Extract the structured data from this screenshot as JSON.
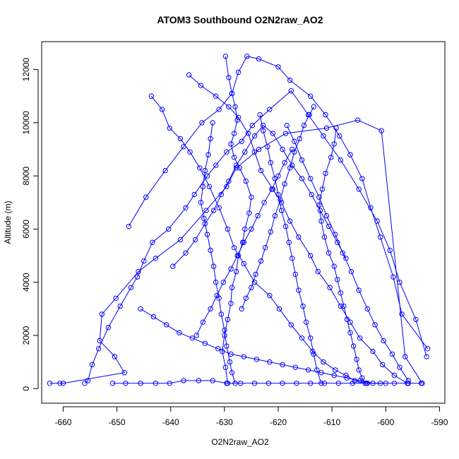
{
  "chart_data": {
    "type": "line",
    "title": "ATOM3 Southbound O2N2raw_AO2",
    "xlabel": "O2N2raw_AO2",
    "ylabel": "Altitude (m)",
    "xlim": [
      -664,
      -589
    ],
    "ylim": [
      -550,
      13050
    ],
    "xticks": [
      -660,
      -650,
      -640,
      -630,
      -620,
      -610,
      -600,
      -590
    ],
    "yticks": [
      0,
      2000,
      4000,
      6000,
      8000,
      10000,
      12000
    ],
    "grid": false,
    "legend": "none",
    "marker": "open-circle",
    "color": "#0000ff",
    "series": [
      {
        "x": [
          -662.5,
          -660.6,
          -660.0,
          -648.6,
          -650.4,
          -653.2,
          -652.8,
          -650.2,
          -646.0,
          -642.8,
          -638.2,
          -633.4,
          -629.6,
          -627.8,
          -623.6,
          -618.6,
          -611.0,
          -605.2,
          -600.8,
          -596.4,
          -593.2
        ],
        "y": [
          200,
          200,
          200,
          600,
          1200,
          1800,
          2800,
          3400,
          4400,
          4900,
          5600,
          6700,
          7600,
          8300,
          9000,
          9600,
          9800,
          10100,
          9700,
          1200,
          200
        ]
      },
      {
        "x": [
          -656.0,
          -655.4,
          -654.6,
          -653.4,
          -651.6,
          -649.4,
          -647.4,
          -646.2,
          -645.0,
          -643.4,
          -640.4,
          -637.2,
          -635.6,
          -633.2,
          -631.6,
          -629.6,
          -626.8,
          -624.8,
          -621.6,
          -617.6,
          -614.4,
          -611.6,
          -608.4,
          -605.0,
          -601.6,
          -599.2,
          -597.4,
          -594.4,
          -592.4
        ],
        "y": [
          200,
          300,
          900,
          1500,
          2300,
          3100,
          3800,
          4200,
          4800,
          5500,
          6000,
          6800,
          7300,
          8000,
          8400,
          8900,
          9300,
          9900,
          10500,
          11200,
          10300,
          9500,
          8600,
          7500,
          6300,
          5200,
          4000,
          2600,
          1200
        ]
      },
      {
        "x": [
          -647.8,
          -644.6,
          -641.0,
          -637.6,
          -634.2,
          -631.0,
          -628.6,
          -627.4,
          -625.8,
          -623.6,
          -620.0,
          -617.8,
          -614.0,
          -611.2,
          -608.6,
          -606.6,
          -604.4,
          -602.8,
          -601.0,
          -598.6,
          -597.0,
          -592.2
        ],
        "y": [
          6100,
          7200,
          8200,
          9100,
          10000,
          10500,
          11100,
          11900,
          12500,
          12400,
          12100,
          11600,
          11000,
          10300,
          9500,
          8800,
          7900,
          6800,
          5700,
          4200,
          2800,
          1500
        ]
      },
      {
        "x": [
          -643.6,
          -641.6,
          -640.2,
          -638.2,
          -636.4,
          -634.6,
          -632.8,
          -631.0,
          -629.4,
          -628.2,
          -626.4,
          -624.4,
          -621.6,
          -619.8,
          -617.6,
          -615.6,
          -613.6,
          -611.6,
          -609.4,
          -607.4,
          -605.8,
          -603.4
        ],
        "y": [
          11000,
          10500,
          9800,
          9400,
          8900,
          8300,
          7600,
          6800,
          6000,
          5300,
          4700,
          4000,
          3500,
          3000,
          2400,
          1900,
          1400,
          1000,
          700,
          500,
          300,
          200
        ]
      },
      {
        "x": [
          -636.6,
          -634.4,
          -631.6,
          -629.2,
          -627.4,
          -625.6,
          -624.4,
          -623.2,
          -621.0,
          -619.4,
          -617.8,
          -616.2,
          -614.0,
          -612.6,
          -610.4,
          -608.4,
          -606.6,
          -604.8,
          -602.4,
          -600.6,
          -598.4,
          -596.0
        ],
        "y": [
          11800,
          11400,
          11000,
          10600,
          10200,
          9600,
          8900,
          8200,
          7500,
          7000,
          6300,
          5700,
          5000,
          4400,
          3800,
          3100,
          2500,
          1900,
          1400,
          900,
          500,
          200
        ]
      },
      {
        "x": [
          -629.4,
          -629.8,
          -630.4,
          -630.0,
          -629.4,
          -628.8,
          -628.6,
          -627.8,
          -627.4,
          -626.6,
          -626.2,
          -625.4,
          -625.0,
          -626.0,
          -627.2,
          -628.2,
          -628.8,
          -628.2,
          -627.6,
          -628.0,
          -628.6,
          -629.2,
          -629.8
        ],
        "y": [
          200,
          800,
          1400,
          2000,
          2600,
          3200,
          3800,
          4400,
          5000,
          5500,
          6000,
          6600,
          7200,
          7800,
          8300,
          8700,
          9200,
          9600,
          10100,
          10600,
          11100,
          11700,
          12500
        ]
      },
      {
        "x": [
          -609.2,
          -609.6,
          -610.2,
          -611.2,
          -611.8,
          -612.4,
          -612.0,
          -611.4,
          -610.6,
          -609.6,
          -609.0,
          -608.4,
          -607.8,
          -607.2,
          -606.6,
          -606.0,
          -605.4,
          -605.0,
          -604.4,
          -603.8
        ],
        "y": [
          9800,
          9200,
          8700,
          8100,
          7500,
          6900,
          6300,
          5700,
          5100,
          4600,
          4100,
          3600,
          3100,
          2600,
          2100,
          1600,
          1100,
          700,
          400,
          200
        ]
      },
      {
        "x": [
          -632.2,
          -632.6,
          -633.0,
          -633.6,
          -634.0,
          -634.4,
          -633.8,
          -633.2,
          -632.6,
          -632.0,
          -631.6,
          -631.0,
          -630.6,
          -630.0,
          -629.6,
          -629.0,
          -628.6,
          -628.0
        ],
        "y": [
          10000,
          9400,
          8800,
          8200,
          7600,
          7000,
          6400,
          5800,
          5200,
          4600,
          4000,
          3400,
          2800,
          2200,
          1600,
          1000,
          600,
          200
        ]
      },
      {
        "x": [
          -623.4,
          -622.8,
          -622.0,
          -621.4,
          -620.6,
          -620.0,
          -619.4,
          -618.6,
          -618.0,
          -617.4,
          -616.8,
          -616.2,
          -615.4,
          -614.8,
          -614.0,
          -613.4,
          -612.8,
          -612.0
        ],
        "y": [
          10300,
          9700,
          9100,
          8500,
          7900,
          7300,
          6700,
          6100,
          5500,
          4900,
          4300,
          3700,
          3100,
          2500,
          1900,
          1300,
          700,
          200
        ]
      },
      {
        "x": [
          -650.8,
          -648.4,
          -645.6,
          -642.8,
          -640.2,
          -637.6,
          -634.8,
          -632.2,
          -629.6,
          -627.0,
          -624.4,
          -621.8,
          -619.2,
          -616.6,
          -614.0,
          -611.4,
          -608.8,
          -606.2,
          -603.6,
          -601.0,
          -598.4,
          -595.8,
          -593.4
        ],
        "y": [
          200,
          200,
          200,
          200,
          200,
          300,
          300,
          300,
          200,
          200,
          200,
          200,
          200,
          200,
          200,
          200,
          200,
          200,
          200,
          200,
          200,
          200,
          200
        ]
      },
      {
        "x": [
          -639.6,
          -637.2,
          -635.4,
          -633.6,
          -632.0,
          -630.6,
          -629.2,
          -627.8,
          -626.2,
          -624.4,
          -622.8,
          -621.0,
          -619.2,
          -617.4,
          -615.6,
          -613.8,
          -612.2,
          -610.6,
          -609.0,
          -607.4
        ],
        "y": [
          4600,
          5100,
          5600,
          6200,
          6700,
          7300,
          7800,
          8400,
          8900,
          9500,
          9900,
          9600,
          9000,
          8400,
          7900,
          7300,
          6700,
          6100,
          5500,
          4900
        ]
      },
      {
        "x": [
          -645.6,
          -643.2,
          -640.8,
          -638.4,
          -636.0,
          -633.6,
          -631.2,
          -628.8,
          -626.4,
          -624.0,
          -621.6,
          -619.2,
          -616.8,
          -614.4,
          -612.0,
          -609.6,
          -607.2,
          -604.8,
          -602.4,
          -600.0
        ],
        "y": [
          3000,
          2700,
          2400,
          2100,
          1900,
          1700,
          1500,
          1300,
          1200,
          1100,
          1000,
          900,
          800,
          700,
          600,
          500,
          400,
          300,
          200,
          200
        ]
      },
      {
        "x": [
          -626.8,
          -626.0,
          -625.0,
          -624.2,
          -623.2,
          -622.4,
          -621.4,
          -620.6,
          -619.6,
          -618.8,
          -617.8,
          -617.0,
          -616.0,
          -615.2,
          -614.2,
          -613.4
        ],
        "y": [
          3000,
          3400,
          3800,
          4300,
          4800,
          5300,
          5900,
          6500,
          7100,
          7700,
          8300,
          8900,
          9400,
          9900,
          10300,
          10600
        ]
      },
      {
        "x": [
          -635.2,
          -634.0,
          -632.6,
          -631.4,
          -630.2,
          -628.8,
          -627.6,
          -626.4,
          -625.0,
          -623.8,
          -622.6,
          -621.2,
          -620.0,
          -618.8,
          -617.4
        ],
        "y": [
          2000,
          2500,
          3000,
          3500,
          4000,
          4500,
          5000,
          5500,
          6000,
          6500,
          7000,
          7500,
          8000,
          8500,
          9000
        ]
      },
      {
        "x": [
          -618.4,
          -617.0,
          -615.6,
          -614.0,
          -612.4,
          -611.0,
          -609.4,
          -608.0,
          -606.4,
          -605.0,
          -603.4,
          -602.0,
          -600.4,
          -598.8,
          -597.4,
          -595.8
        ],
        "y": [
          9900,
          9300,
          8600,
          7900,
          7200,
          6500,
          5800,
          5100,
          4400,
          3700,
          3000,
          2400,
          1800,
          1300,
          800,
          300
        ]
      }
    ]
  }
}
